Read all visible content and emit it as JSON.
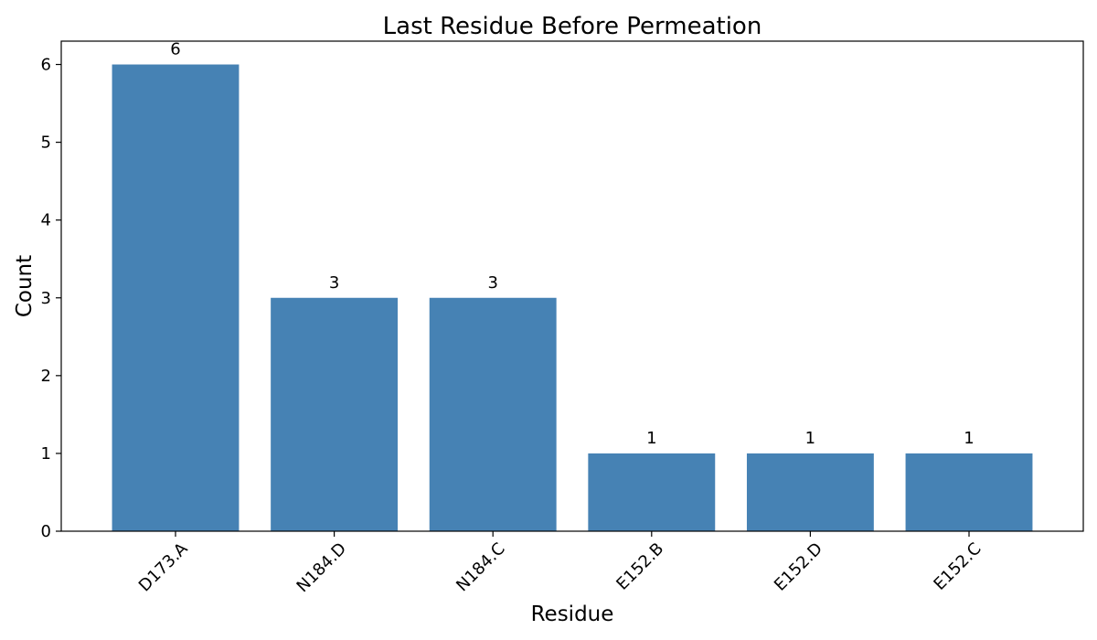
{
  "chart_data": {
    "type": "bar",
    "title": "Last Residue Before Permeation",
    "xlabel": "Residue",
    "ylabel": "Count",
    "categories": [
      "D173.A",
      "N184.D",
      "N184.C",
      "E152.B",
      "E152.D",
      "E152.C"
    ],
    "values": [
      6,
      3,
      3,
      1,
      1,
      1
    ],
    "data_labels": [
      "6",
      "3",
      "3",
      "1",
      "1",
      "1"
    ],
    "y_ticks": [
      0,
      1,
      2,
      3,
      4,
      5,
      6
    ],
    "ylim": [
      0,
      6.3
    ],
    "bar_color": "#4682b4",
    "grid": false,
    "x_tick_rotation_deg": 45
  }
}
